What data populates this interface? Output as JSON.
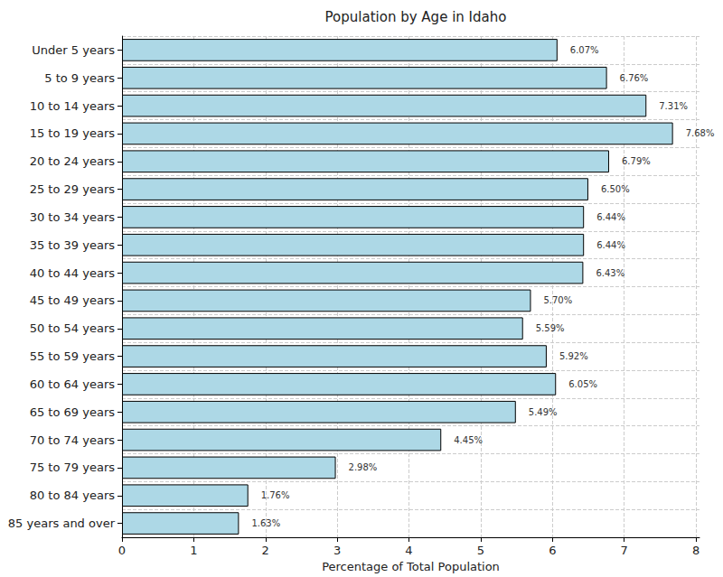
{
  "chart_data": {
    "type": "bar",
    "orientation": "horizontal",
    "title": "Population by Age in Idaho",
    "x_label": "Percentage of Total Population",
    "categories": [
      "Under 5 years",
      "5 to 9 years",
      "10 to 14 years",
      "15 to 19 years",
      "20 to 24 years",
      "25 to 29 years",
      "30 to 34 years",
      "35 to 39 years",
      "40 to 44 years",
      "45 to 49 years",
      "50 to 54 years",
      "55 to 59 years",
      "60 to 64 years",
      "65 to 69 years",
      "70 to 74 years",
      "75 to 79 years",
      "80 to 84 years",
      "85 years and over"
    ],
    "values": [
      6.07,
      6.76,
      7.31,
      7.68,
      6.79,
      6.5,
      6.44,
      6.44,
      6.43,
      5.7,
      5.59,
      5.92,
      6.05,
      5.49,
      4.45,
      2.98,
      1.76,
      1.63
    ],
    "value_labels": [
      "6.07%",
      "6.76%",
      "7.31%",
      "7.68%",
      "6.79%",
      "6.50%",
      "6.44%",
      "6.44%",
      "6.43%",
      "5.70%",
      "5.59%",
      "5.92%",
      "6.05%",
      "5.49%",
      "4.45%",
      "2.98%",
      "1.76%",
      "1.63%"
    ],
    "color": "#add8e6",
    "data_labels": true,
    "xlim": [
      0,
      8.05
    ],
    "xticks": [
      0,
      1,
      2,
      3,
      4,
      5,
      6,
      7,
      8
    ],
    "grid": true
  }
}
